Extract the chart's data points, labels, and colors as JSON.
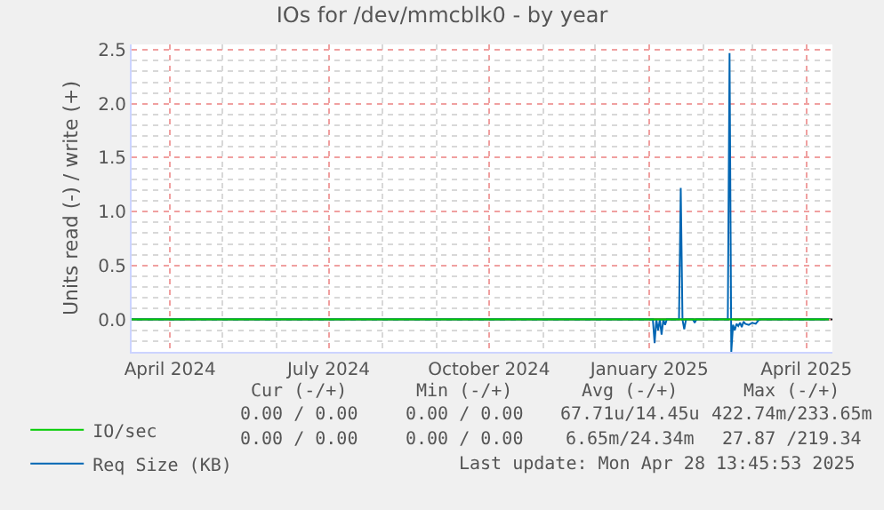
{
  "chart_data": {
    "type": "line",
    "title": "IOs for /dev/mmcblk0 - by year",
    "ylabel": "Units read (-) / write (+)",
    "xlim": [
      "2024-03-10",
      "2025-04-16"
    ],
    "xticks": [
      {
        "value": "2024-04-01",
        "label": "April 2024"
      },
      {
        "value": "2024-07-01",
        "label": "July 2024"
      },
      {
        "value": "2024-10-01",
        "label": "October 2024"
      },
      {
        "value": "2025-01-01",
        "label": "January 2025"
      },
      {
        "value": "2025-04-01",
        "label": "April 2025"
      }
    ],
    "ylim": [
      -0.3,
      2.55
    ],
    "yticks": [
      {
        "value": 0,
        "label": "0.0"
      },
      {
        "value": 0.5,
        "label": "0.5"
      },
      {
        "value": 1,
        "label": "1.0"
      },
      {
        "value": 1.5,
        "label": "1.5"
      },
      {
        "value": 2,
        "label": "2.0"
      },
      {
        "value": 2.5,
        "label": "2.5"
      }
    ],
    "grid": true,
    "legend": "bottom left",
    "marker": "none",
    "line_style": "solid",
    "ref_lines": [
      {
        "axis": "y",
        "value": 0,
        "color": "#000000"
      }
    ],
    "series": [
      {
        "name": "Req Size (KB)",
        "color": "#0066b3",
        "x": [
          "2024-03-10",
          "2025-01-03",
          "2025-01-04",
          "2025-01-05",
          "2025-01-06",
          "2025-01-07",
          "2025-01-08",
          "2025-01-09",
          "2025-01-10",
          "2025-01-11",
          "2025-01-18",
          "2025-01-19",
          "2025-01-20",
          "2025-01-21",
          "2025-01-22",
          "2025-01-26",
          "2025-01-27",
          "2025-01-28",
          "2025-02-15",
          "2025-02-16",
          "2025-02-17",
          "2025-02-18",
          "2025-02-19",
          "2025-02-20",
          "2025-02-21",
          "2025-02-22",
          "2025-02-23",
          "2025-02-24",
          "2025-02-25",
          "2025-02-27",
          "2025-03-01",
          "2025-03-03",
          "2025-03-05",
          "2025-04-14"
        ],
        "values": [
          0,
          0,
          -0.22,
          0,
          -0.1,
          0,
          -0.14,
          0,
          -0.05,
          0,
          0,
          1.22,
          0,
          -0.09,
          0,
          0,
          -0.03,
          0,
          0,
          2.47,
          -0.3,
          -0.05,
          -0.1,
          -0.04,
          -0.06,
          -0.03,
          -0.07,
          -0.02,
          -0.04,
          -0.05,
          -0.03,
          -0.04,
          0,
          0
        ]
      },
      {
        "name": "IO/sec",
        "color": "#00cc00",
        "x": [
          "2024-03-10",
          "2025-04-14"
        ],
        "values": [
          0,
          0
        ]
      }
    ],
    "annotations": [
      "Cur (-/+)",
      "Min (-/+)",
      "Avg (-/+)",
      "Max (-/+)",
      "0.00 / 0.00",
      "0.00 / 0.00",
      "67.71u/14.45u",
      "422.74m/233.65m",
      "0.00 / 0.00",
      "0.00 / 0.00",
      "6.65m/24.34m",
      "27.87 /219.34",
      "Last update: Mon Apr 28 13:45:53 2025"
    ]
  }
}
